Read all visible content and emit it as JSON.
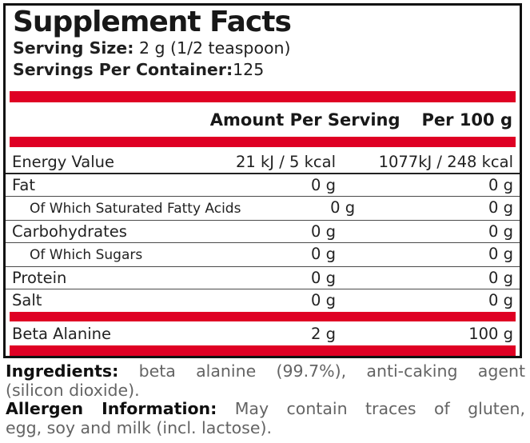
{
  "colors": {
    "accent_red": "#df0024",
    "border_black": "#111111",
    "body_gray": "#646464"
  },
  "panel": {
    "title": "Supplement Facts",
    "serving_size_label": "Serving Size:",
    "serving_size_value": "2 g (1/2 teaspoon)",
    "servings_per_container_label": "Servings Per Container:",
    "servings_per_container_value": "125"
  },
  "table": {
    "header": {
      "amount_per_serving": "Amount Per Serving",
      "per_100g": "Per 100 g"
    },
    "rows": [
      {
        "name": "Energy Value",
        "per_serving": "21 kJ / 5 kcal",
        "per_100g": "1077kJ / 248 kcal"
      },
      {
        "name": "Fat",
        "per_serving": "0 g",
        "per_100g": "0 g"
      },
      {
        "name": "Of Which Saturated Fatty Acids",
        "per_serving": "0 g",
        "per_100g": "0 g"
      },
      {
        "name": "Carbohydrates",
        "per_serving": "0 g",
        "per_100g": "0 g"
      },
      {
        "name": "Of Which Sugars",
        "per_serving": "0 g",
        "per_100g": "0 g"
      },
      {
        "name": "Protein",
        "per_serving": "0 g",
        "per_100g": "0 g"
      },
      {
        "name": "Salt",
        "per_serving": "0 g",
        "per_100g": "0 g"
      }
    ],
    "active_ingredient": {
      "name": "Beta Alanine",
      "per_serving": "2 g",
      "per_100g": "100 g"
    }
  },
  "notes": {
    "ingredients_label": "Ingredients:",
    "ingredients_line1": "beta alanine (99.7%), anti-caking agent",
    "ingredients_line2": "(silicon dioxide).",
    "allergen_label": "Allergen Information:",
    "allergen_line1": "May contain traces of gluten,",
    "allergen_line2": "egg, soy and milk (incl. lactose)."
  }
}
